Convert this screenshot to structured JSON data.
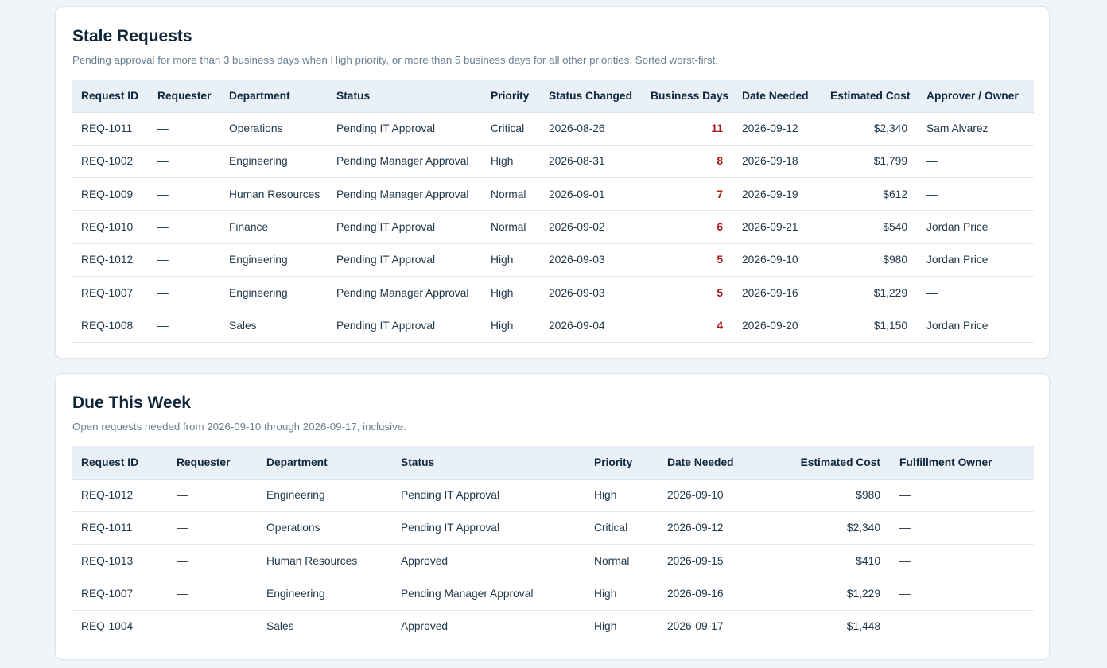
{
  "stale": {
    "title": "Stale Requests",
    "subtitle": "Pending approval for more than 3 business days when High priority, or more than 5 business days for all other priorities. Sorted worst-first.",
    "headers": [
      "Request ID",
      "Requester",
      "Department",
      "Status",
      "Priority",
      "Status Changed",
      "Business Days",
      "Date Needed",
      "Estimated Cost",
      "Approver / Owner"
    ],
    "rows": [
      [
        "REQ-1011",
        "—",
        "Operations",
        "Pending IT Approval",
        "Critical",
        "2026-08-26",
        "11",
        "2026-09-12",
        "$2,340",
        "Sam Alvarez"
      ],
      [
        "REQ-1002",
        "—",
        "Engineering",
        "Pending Manager Approval",
        "High",
        "2026-08-31",
        "8",
        "2026-09-18",
        "$1,799",
        "—"
      ],
      [
        "REQ-1009",
        "—",
        "Human Resources",
        "Pending Manager Approval",
        "Normal",
        "2026-09-01",
        "7",
        "2026-09-19",
        "$612",
        "—"
      ],
      [
        "REQ-1010",
        "—",
        "Finance",
        "Pending IT Approval",
        "Normal",
        "2026-09-02",
        "6",
        "2026-09-21",
        "$540",
        "Jordan Price"
      ],
      [
        "REQ-1012",
        "—",
        "Engineering",
        "Pending IT Approval",
        "High",
        "2026-09-03",
        "5",
        "2026-09-10",
        "$980",
        "Jordan Price"
      ],
      [
        "REQ-1007",
        "—",
        "Engineering",
        "Pending Manager Approval",
        "High",
        "2026-09-03",
        "5",
        "2026-09-16",
        "$1,229",
        "—"
      ],
      [
        "REQ-1008",
        "—",
        "Sales",
        "Pending IT Approval",
        "High",
        "2026-09-04",
        "4",
        "2026-09-20",
        "$1,150",
        "Jordan Price"
      ]
    ]
  },
  "due": {
    "title": "Due This Week",
    "subtitle": "Open requests needed from 2026-09-10 through 2026-09-17, inclusive.",
    "headers": [
      "Request ID",
      "Requester",
      "Department",
      "Status",
      "Priority",
      "Date Needed",
      "Estimated Cost",
      "Fulfillment Owner"
    ],
    "rows": [
      [
        "REQ-1012",
        "—",
        "Engineering",
        "Pending IT Approval",
        "High",
        "2026-09-10",
        "$980",
        "—"
      ],
      [
        "REQ-1011",
        "—",
        "Operations",
        "Pending IT Approval",
        "Critical",
        "2026-09-12",
        "$2,340",
        "—"
      ],
      [
        "REQ-1013",
        "—",
        "Human Resources",
        "Approved",
        "Normal",
        "2026-09-15",
        "$410",
        "—"
      ],
      [
        "REQ-1007",
        "—",
        "Engineering",
        "Pending Manager Approval",
        "High",
        "2026-09-16",
        "$1,229",
        "—"
      ],
      [
        "REQ-1004",
        "—",
        "Sales",
        "Approved",
        "High",
        "2026-09-17",
        "$1,448",
        "—"
      ]
    ]
  },
  "colors": {
    "page_bg": "#f1f5f9",
    "header_row_bg": "#e9f0f8",
    "business_days": "#a61b1b",
    "title": "#0f2538",
    "subtitle": "#6b7f93"
  }
}
